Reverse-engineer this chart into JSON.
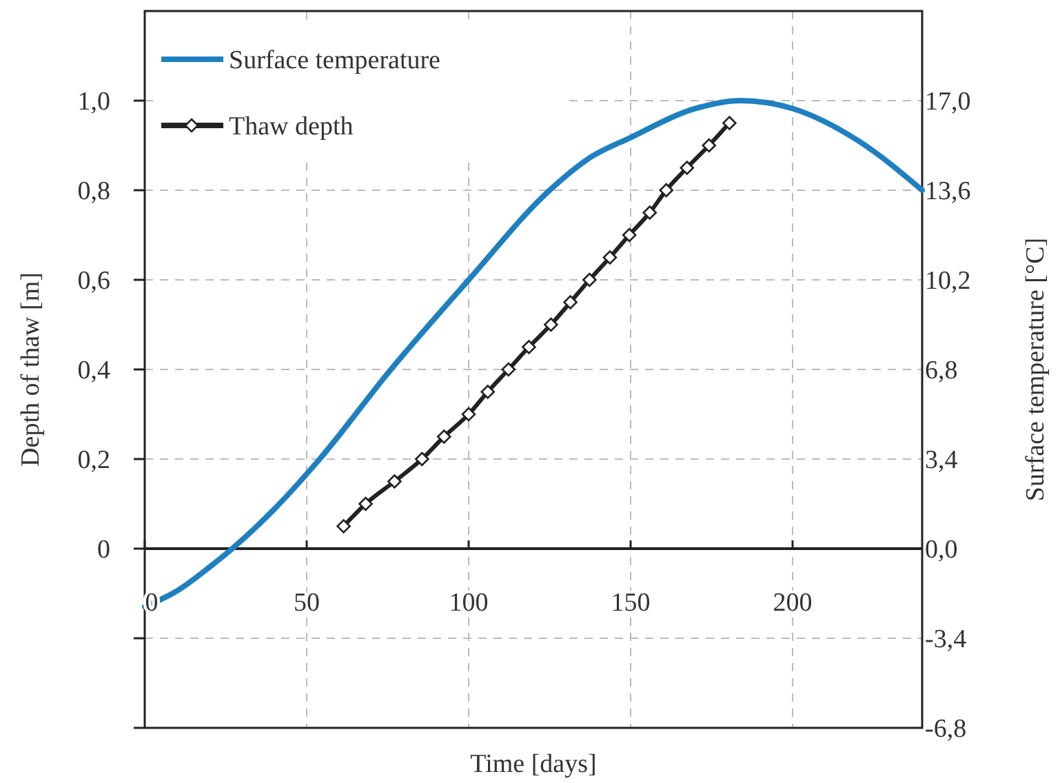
{
  "chart_data": {
    "type": "line",
    "xlabel": "Time [days]",
    "ylabel": "Depth of thaw [m]",
    "y2label": "Surface temperature [°C]",
    "xlim": [
      0,
      240
    ],
    "xticks": [
      0,
      50,
      100,
      150,
      200
    ],
    "ylim": [
      -0.4,
      1.2
    ],
    "yticks": [
      {
        "value": -0.4,
        "label": null
      },
      {
        "value": -0.2,
        "label": null
      },
      0,
      {
        "value": 0.2,
        "label": "0,2"
      },
      {
        "value": 0.4,
        "label": "0,4"
      },
      {
        "value": 0.6,
        "label": "0,6"
      },
      {
        "value": 0.8,
        "label": "0,8"
      },
      {
        "value": 1.0,
        "label": "1,0"
      }
    ],
    "y2lim": [
      -6.8,
      20.4
    ],
    "y2ticks": [
      {
        "value": -6.8,
        "label": "-6,8"
      },
      {
        "value": -3.4,
        "label": "-3,4"
      },
      {
        "value": 0,
        "label": "0,0"
      },
      {
        "value": 3.4,
        "label": "3,4"
      },
      {
        "value": 6.8,
        "label": "6,8"
      },
      {
        "value": 10.2,
        "label": "10,2"
      },
      {
        "value": 13.6,
        "label": "13,6"
      },
      {
        "value": 17.0,
        "label": "17,0"
      }
    ],
    "grid": true,
    "legend": "top left",
    "line_style": "solid",
    "series": [
      {
        "name": "Surface temperature",
        "color": "#1f80c0",
        "axis": "y2",
        "marker": "none",
        "x": [
          0,
          10,
          20,
          27,
          40,
          54,
          76,
          100,
          125,
          137,
          150,
          170,
          184,
          200,
          220,
          240
        ],
        "values": [
          -2.2,
          -1.6,
          -0.7,
          0,
          1.5,
          3.4,
          6.8,
          10.2,
          13.6,
          14.8,
          15.6,
          16.7,
          17.0,
          16.7,
          15.5,
          13.6
        ]
      },
      {
        "name": "Thaw depth",
        "color": "#222222",
        "axis": "y",
        "marker": "diamond",
        "x": [
          61.4,
          68.2,
          77.1,
          85.6,
          92.4,
          100,
          105.9,
          112.3,
          118.6,
          125.4,
          131.4,
          137.3,
          143.6,
          149.6,
          155.9,
          161,
          167.4,
          174.2,
          180.5
        ],
        "values": [
          0.05,
          0.1,
          0.15,
          0.2,
          0.25,
          0.3,
          0.35,
          0.4,
          0.45,
          0.5,
          0.55,
          0.6,
          0.65,
          0.7,
          0.75,
          0.8,
          0.85,
          0.9,
          0.95
        ]
      }
    ]
  }
}
